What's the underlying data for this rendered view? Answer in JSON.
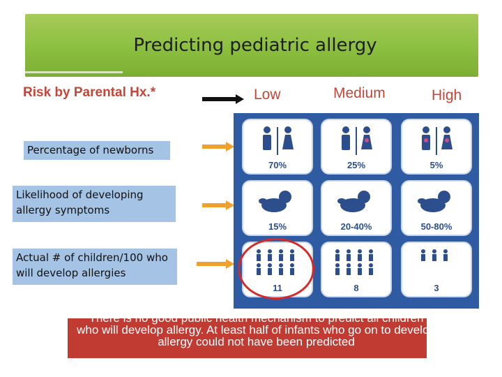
{
  "title": "Predicting pediatric allergy",
  "risk_label": "Risk by Parental Hx.*",
  "levels": {
    "low": "Low",
    "medium": "Medium",
    "high": "High"
  },
  "rows": [
    {
      "label": "Percentage of newborns"
    },
    {
      "label": "Likelihood of developing allergy symptoms"
    },
    {
      "label": "Actual # of children/100 who will develop allergies"
    }
  ],
  "grid": {
    "newborns": [
      "70%",
      "25%",
      "5%"
    ],
    "likelihood": [
      "15%",
      "20-40%",
      "50-80%"
    ],
    "children": [
      "11",
      "8",
      "3"
    ]
  },
  "note": "There is no good public health mechanism to predict all children who will develop allergy. At least half of infants who go on to develop allergy could not have been predicted",
  "colors": {
    "title_bar": "#8bbf3f",
    "accent_red": "#c54638",
    "panel_blue": "#2f5ba3",
    "label_box": "#a5c3e4",
    "arrow": "#f0a12d",
    "note_bg": "#c23b33"
  }
}
